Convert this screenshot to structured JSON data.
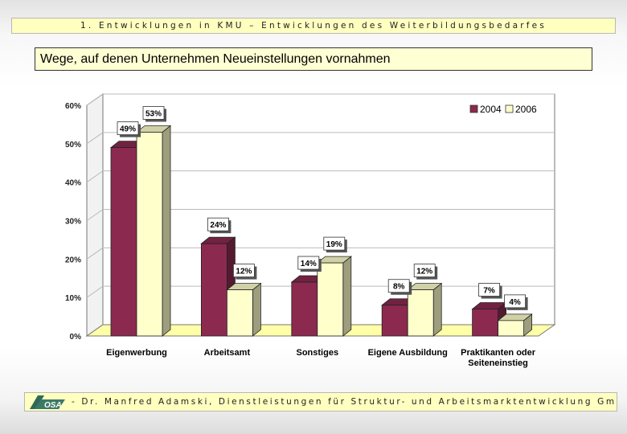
{
  "header": {
    "text": "1. Entwicklungen in KMU – Entwicklungen des Weiterbildungsbedarfes"
  },
  "title": "Wege, auf denen Unternehmen Neueinstellungen vornahmen",
  "footer": {
    "logo_text": "OSA",
    "text": "- Dr. Manfred Adamski, Dienstleistungen für Struktur- und Arbeitsmarktentwicklung GmbH"
  },
  "colors": {
    "series_2004": "#8b2a4e",
    "series_2006": "#ffffcc",
    "floor": "#ffffa8",
    "wall": "#ffffff",
    "grid": "#bbbbbb"
  },
  "chart_data": {
    "type": "bar",
    "title": "Wege, auf denen Unternehmen Neueinstellungen vornahmen",
    "categories": [
      [
        "Eigenwerbung"
      ],
      [
        "Arbeitsamt"
      ],
      [
        "Sonstiges"
      ],
      [
        "Eigene Ausbildung"
      ],
      [
        "Praktikanten oder",
        "Seiteneinstieg"
      ]
    ],
    "series": [
      {
        "name": "2004",
        "values": [
          49,
          24,
          14,
          8,
          7
        ],
        "labels": [
          "49%",
          "24%",
          "14%",
          "8%",
          "7%"
        ]
      },
      {
        "name": "2006",
        "values": [
          53,
          12,
          19,
          12,
          4
        ],
        "labels": [
          "53%",
          "12%",
          "19%",
          "12%",
          "4%"
        ]
      }
    ],
    "ylim": [
      0,
      60
    ],
    "yticks": [
      0,
      10,
      20,
      30,
      40,
      50,
      60
    ],
    "ytick_labels": [
      "0%",
      "10%",
      "20%",
      "30%",
      "40%",
      "50%",
      "60%"
    ],
    "grid": true,
    "legend_position": "top-right",
    "projection": "3d"
  }
}
